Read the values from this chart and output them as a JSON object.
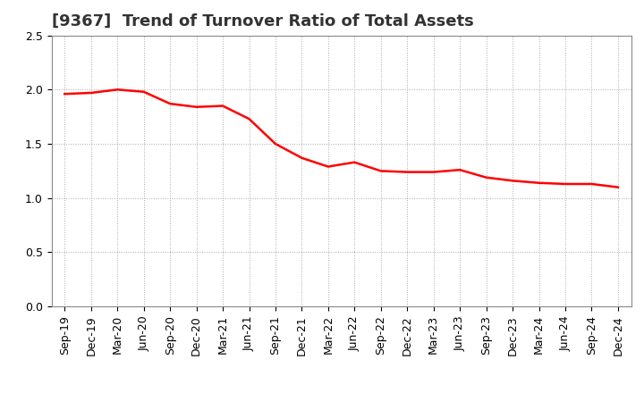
{
  "title": "[9367]  Trend of Turnover Ratio of Total Assets",
  "x_labels": [
    "Sep-19",
    "Dec-19",
    "Mar-20",
    "Jun-20",
    "Sep-20",
    "Dec-20",
    "Mar-21",
    "Jun-21",
    "Sep-21",
    "Dec-21",
    "Mar-22",
    "Jun-22",
    "Sep-22",
    "Dec-22",
    "Mar-23",
    "Jun-23",
    "Sep-23",
    "Dec-23",
    "Mar-24",
    "Jun-24",
    "Sep-24",
    "Dec-24"
  ],
  "values": [
    1.96,
    1.97,
    2.0,
    1.98,
    1.87,
    1.84,
    1.85,
    1.73,
    1.5,
    1.37,
    1.29,
    1.33,
    1.25,
    1.24,
    1.24,
    1.26,
    1.19,
    1.16,
    1.14,
    1.13,
    1.13,
    1.1
  ],
  "line_color": "#FF0000",
  "line_width": 1.8,
  "ylim": [
    0.0,
    2.5
  ],
  "yticks": [
    0.0,
    0.5,
    1.0,
    1.5,
    2.0,
    2.5
  ],
  "grid_color": "#aaaaaa",
  "background_color": "#ffffff",
  "title_fontsize": 13,
  "tick_fontsize": 9,
  "title_color": "#333333"
}
